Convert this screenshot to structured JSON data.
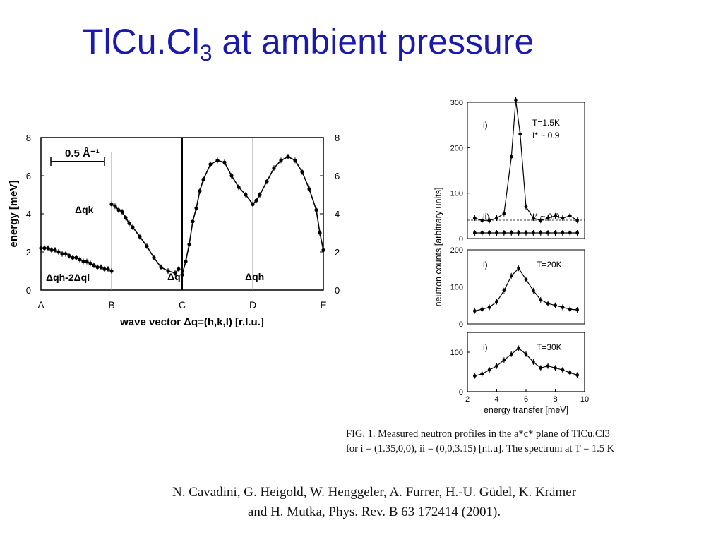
{
  "slide": {
    "title_main": "TlCu.Cl",
    "title_sub": "3",
    "title_rest": " at ambient pressure",
    "caption_line1": "FIG. 1. Measured neutron profiles in the a*c* plane of TlCu.Cl3",
    "caption_line2": "for i = (1.35,0,0), ii = (0,0,3.15) [r.l.u]. The spectrum at T = 1.5 K",
    "reference_line1": "N. Cavadini, G. Heigold, W. Henggeler, A. Furrer, H.-U. Güdel, K. Krämer",
    "reference_line2": "and H. Mutka, Phys. Rev. B 63 172414 (2001)."
  },
  "chart_data": [
    {
      "type": "scatter",
      "xlabel": "wave vector Δq=(h,k,l) [r.l.u.]",
      "ylabel": "energy [meV]",
      "ylim": [
        0,
        8
      ],
      "yticks": [
        "0",
        "2",
        "4",
        "6",
        "8"
      ],
      "xtick_labels": [
        "A",
        "B",
        "C",
        "D",
        "E"
      ],
      "scale_bar": "0.5 Å⁻¹",
      "region_labels": [
        "Δqh-2Δql",
        "Δqk",
        "Δql",
        "Δqh"
      ],
      "series": [
        {
          "x": [
            0.0,
            0.05,
            0.1,
            0.15,
            0.2,
            0.25,
            0.3,
            0.35,
            0.4,
            0.45,
            0.5,
            0.55,
            0.6,
            0.65,
            0.7,
            0.75,
            0.8,
            0.85,
            0.9,
            0.95,
            1.0,
            1.0,
            1.05,
            1.1,
            1.15,
            1.2,
            1.25,
            1.3,
            1.4,
            1.5,
            1.6,
            1.7,
            1.8,
            1.9,
            1.95,
            2.0,
            2.05,
            2.1,
            2.15,
            2.2,
            2.25,
            2.3,
            2.4,
            2.5,
            2.6,
            2.7,
            2.8,
            2.9,
            3.0,
            3.05,
            3.1,
            3.2,
            3.3,
            3.4,
            3.5,
            3.6,
            3.7,
            3.8,
            3.9,
            3.95,
            4.0
          ],
          "y": [
            2.2,
            2.2,
            2.2,
            2.1,
            2.1,
            2.0,
            1.9,
            1.9,
            1.8,
            1.7,
            1.7,
            1.6,
            1.5,
            1.5,
            1.4,
            1.3,
            1.2,
            1.2,
            1.1,
            1.1,
            1.0,
            4.5,
            4.4,
            4.2,
            4.1,
            3.8,
            3.5,
            3.3,
            2.8,
            2.3,
            1.7,
            1.2,
            1.0,
            0.9,
            1.1,
            0.8,
            1.5,
            2.4,
            3.6,
            4.3,
            5.2,
            5.8,
            6.6,
            6.8,
            6.7,
            6.0,
            5.4,
            5.0,
            4.5,
            4.7,
            5.0,
            5.7,
            6.4,
            6.8,
            7.0,
            6.8,
            6.2,
            5.3,
            4.2,
            3.0,
            2.1
          ]
        }
      ]
    },
    {
      "type": "line",
      "panel": "T=1.5K",
      "annotations": [
        "i)",
        "T=1.5K",
        "I* ~ 0.9",
        "ii)",
        "I* ~ 0.0"
      ],
      "ylim": [
        0,
        300
      ],
      "yticks": [
        "0",
        "100",
        "200",
        "300"
      ],
      "series": [
        {
          "name": "i)",
          "x": [
            2.5,
            3,
            3.5,
            4,
            4.5,
            5,
            5.3,
            5.6,
            6,
            6.5,
            7,
            7.5,
            8,
            8.5,
            9,
            9.5
          ],
          "y": [
            45,
            40,
            40,
            45,
            55,
            180,
            305,
            230,
            70,
            45,
            40,
            45,
            50,
            45,
            50,
            40
          ]
        },
        {
          "name": "ii)",
          "x": [
            2.5,
            3,
            3.5,
            4,
            4.5,
            5,
            5.5,
            6,
            6.5,
            7,
            7.5,
            8,
            8.5,
            9,
            9.5
          ],
          "y": [
            0,
            0,
            0,
            0,
            0,
            0,
            0,
            0,
            0,
            0,
            0,
            0,
            0,
            0,
            0
          ]
        }
      ]
    },
    {
      "type": "line",
      "panel": "T=20K",
      "annotations": [
        "i)",
        "T=20K"
      ],
      "ylim": [
        0,
        200
      ],
      "yticks": [
        "0",
        "100",
        "200"
      ],
      "series": [
        {
          "name": "i)",
          "x": [
            2.5,
            3,
            3.5,
            4,
            4.5,
            5,
            5.5,
            6,
            6.5,
            7,
            7.5,
            8,
            8.5,
            9,
            9.5
          ],
          "y": [
            35,
            40,
            45,
            60,
            90,
            130,
            150,
            120,
            90,
            65,
            55,
            50,
            45,
            40,
            38
          ]
        }
      ]
    },
    {
      "type": "line",
      "panel": "T=30K",
      "annotations": [
        "i)",
        "T=30K"
      ],
      "ylim": [
        0,
        150
      ],
      "yticks": [
        "0",
        "100"
      ],
      "xlim": [
        2,
        10
      ],
      "xticks": [
        "2",
        "4",
        "6",
        "8",
        "10"
      ],
      "xlabel": "energy transfer [meV]",
      "ylabel": "neutron counts [arbitrary units]",
      "series": [
        {
          "name": "i)",
          "x": [
            2.5,
            3,
            3.5,
            4,
            4.5,
            5,
            5.5,
            6,
            6.5,
            7,
            7.5,
            8,
            8.5,
            9,
            9.5
          ],
          "y": [
            40,
            45,
            55,
            65,
            80,
            95,
            110,
            95,
            75,
            60,
            65,
            60,
            55,
            48,
            42
          ]
        }
      ]
    }
  ]
}
